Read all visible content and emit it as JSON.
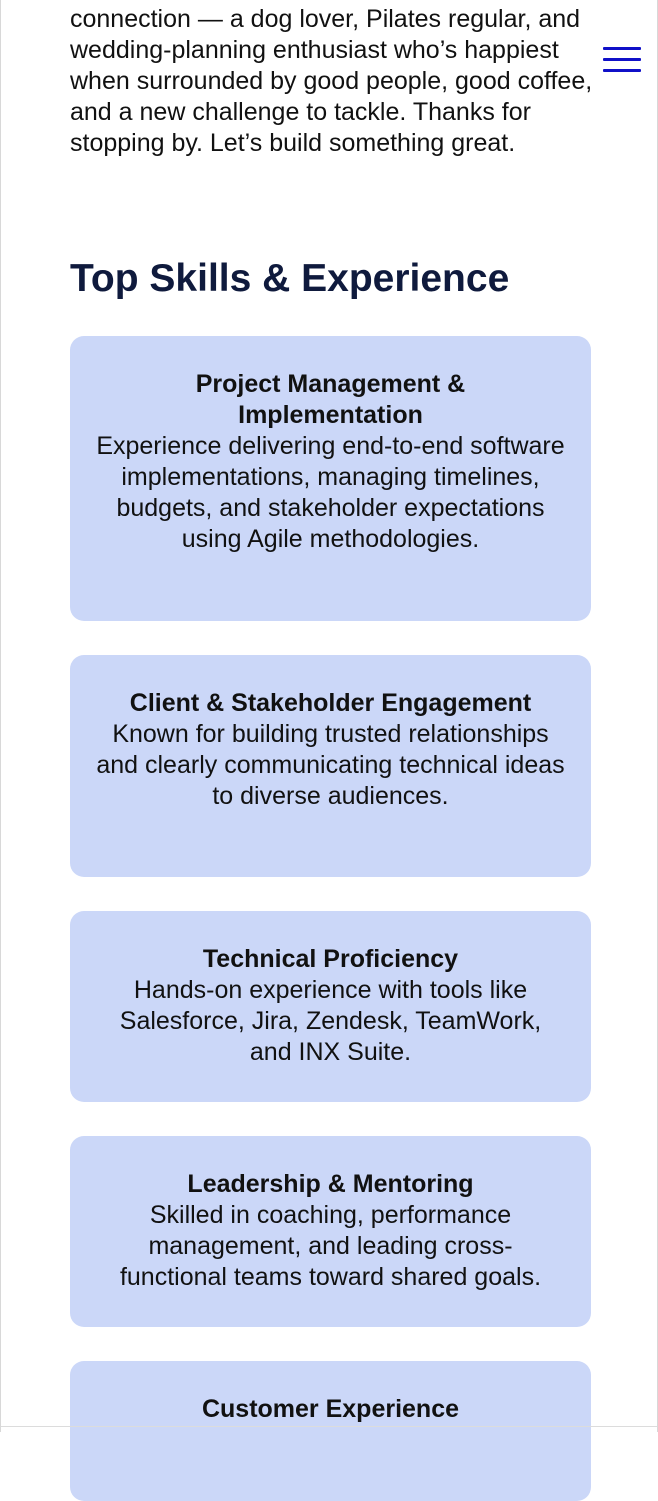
{
  "intro": {
    "text": "connection — a dog lover, Pilates regular, and wedding-planning enthusiast who’s happiest when surrounded by good people, good coffee, and a new challenge to tackle. Thanks for stopping by. Let’s build something great."
  },
  "nav": {
    "menu_icon": "hamburger-menu-icon",
    "menu_color": "#1010c8"
  },
  "skills": {
    "title": "Top Skills & Experience",
    "card_color": "#cbd7f8",
    "items": [
      {
        "title": "Project Management & Implementation",
        "description": "Experience delivering end-to-end software implementations, managing timelines, budgets, and stakeholder expectations using Agile methodologies."
      },
      {
        "title": "Client & Stakeholder Engagement",
        "description": "Known for building trusted relationships and clearly communicating technical ideas to diverse audiences."
      },
      {
        "title": "Technical Proficiency",
        "description": "Hands-on experience with tools like Salesforce, Jira, Zendesk, TeamWork, and INX Suite."
      },
      {
        "title": "Leadership & Mentoring",
        "description": "Skilled in coaching, performance management, and leading cross-functional teams toward shared goals."
      },
      {
        "title": "Customer Experience",
        "description": ""
      }
    ]
  }
}
